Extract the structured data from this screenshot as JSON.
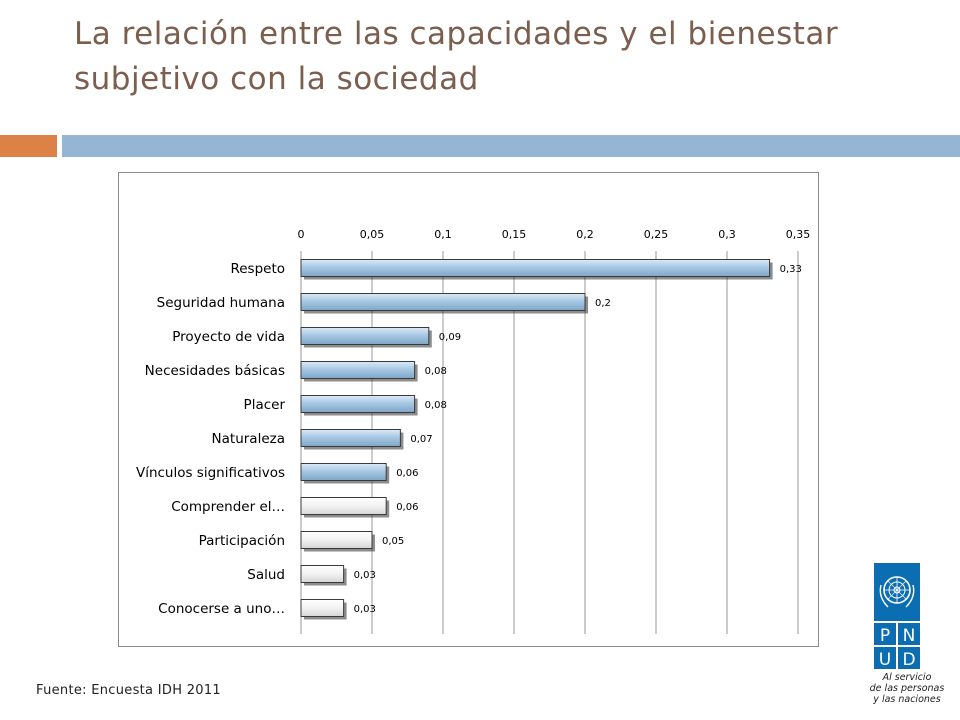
{
  "slide": {
    "title": "La relación entre las capacidades y el bienestar subjetivo con la sociedad",
    "source_note": "Fuente: Encuesta IDH 2011"
  },
  "logo": {
    "icon": "un-emblem-icon",
    "letters": [
      "P",
      "N",
      "U",
      "D"
    ],
    "tagline": [
      "Al servicio",
      "de las personas",
      "y las naciones"
    ],
    "color": "#0b6eb2"
  },
  "colors": {
    "title": "#7b5e4d",
    "accent_orange": "#dd8147",
    "accent_blue": "#94b6d2",
    "bar_blue": "#a8c8e4",
    "bar_white": "#f2f2f2"
  },
  "chart_data": {
    "type": "bar",
    "orientation": "horizontal",
    "title": "",
    "xlabel": "",
    "ylabel": "",
    "categories": [
      "Respeto",
      "Seguridad humana",
      "Proyecto de vida",
      "Necesidades básicas",
      "Placer",
      "Naturaleza",
      "Vínculos significativos",
      "Comprender el…",
      "Participación",
      "Salud",
      "Conocerse a uno…"
    ],
    "values": [
      0.33,
      0.2,
      0.09,
      0.08,
      0.08,
      0.07,
      0.06,
      0.06,
      0.05,
      0.03,
      0.03
    ],
    "data_labels": [
      "0,33",
      "0,2",
      "0,09",
      "0,08",
      "0,08",
      "0,07",
      "0,06",
      "0,06",
      "0,05",
      "0,03",
      "0,03"
    ],
    "bar_fill": [
      "blue",
      "blue",
      "blue",
      "blue",
      "blue",
      "blue",
      "blue",
      "white",
      "white",
      "white",
      "white"
    ],
    "xlim": [
      0,
      0.35
    ],
    "ticks": [
      0,
      0.05,
      0.1,
      0.15,
      0.2,
      0.25,
      0.3,
      0.35
    ],
    "tick_labels": [
      "0",
      "0,05",
      "0,1",
      "0,15",
      "0,2",
      "0,25",
      "0,3",
      "0,35"
    ],
    "axis_position": "top",
    "grid": true,
    "legend": "none"
  }
}
